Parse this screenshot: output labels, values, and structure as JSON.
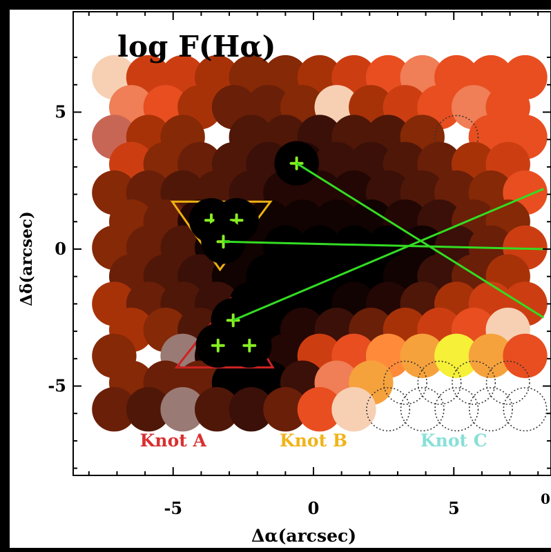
{
  "chart_data": {
    "type": "heatmap",
    "title": "log F(Hα)",
    "xlabel": "Δα(arcsec)",
    "ylabel": "Δδ(arcsec)",
    "xlim": [
      -8.2,
      8.2
    ],
    "ylim": [
      -8.2,
      7.8
    ],
    "xticks": [
      -5,
      0,
      5
    ],
    "xtick_labels": [
      "-5",
      "0",
      "5"
    ],
    "yticks": [
      -5,
      0,
      5
    ],
    "ytick_labels": [
      "-5",
      "0",
      "5"
    ],
    "edge_label": "0",
    "fiber_diameter_arcsec": 1.6,
    "colors": {
      "1": "#f7d0b4",
      "2": "#f07e56",
      "3": "#e84e20",
      "4": "#cc3e12",
      "5": "#a83208",
      "6": "#852906",
      "7": "#6a1f08",
      "8": "#4f1708",
      "9": "#3a1008",
      "10": "#230704",
      "11": "#100302",
      "12": "#000000",
      "14": "#f6a23c",
      "15": "#f6f038",
      "16": "#9a7a74",
      "17": "#c86656",
      "19": "#ff8a3a"
    },
    "rows": [
      {
        "y": 6.27,
        "x": [
          -7.1,
          -5.88,
          -4.66,
          -3.44,
          -2.22,
          -1.0,
          0.22,
          1.44,
          2.66,
          3.88,
          5.1,
          6.32,
          7.54
        ],
        "levels": [
          1,
          4,
          4,
          5,
          6,
          6,
          5,
          4,
          3,
          2,
          3,
          3,
          3
        ]
      },
      {
        "y": 5.18,
        "x": [
          -6.49,
          -5.27,
          -4.05,
          -2.83,
          -1.61,
          -0.39,
          0.83,
          2.05,
          3.27,
          4.49,
          5.71,
          6.93
        ],
        "levels": [
          2,
          3,
          5,
          7,
          7,
          6,
          1,
          5,
          4,
          3,
          2,
          3
        ]
      },
      {
        "y": 4.09,
        "x": [
          -7.1,
          -5.88,
          -4.66,
          -2.22,
          -1.0,
          0.22,
          1.44,
          2.66,
          3.88,
          6.32,
          7.54
        ],
        "levels": [
          17,
          5,
          6,
          8,
          8,
          9,
          8,
          8,
          6,
          3,
          3
        ],
        "empty": [
          5.1
        ]
      },
      {
        "y": 3.1,
        "x": [
          -6.49,
          -5.27,
          -4.05,
          -2.83,
          -1.61,
          -0.39,
          0.83,
          2.05,
          3.27,
          4.49,
          5.71,
          6.93
        ],
        "levels": [
          4,
          6,
          7,
          8,
          9,
          10,
          9,
          9,
          8,
          7,
          5,
          4
        ]
      },
      {
        "y": 2.06,
        "x": [
          -7.1,
          -5.88,
          -4.66,
          -3.44,
          -2.22,
          -1.0,
          0.22,
          1.44,
          2.66,
          3.88,
          5.1,
          6.32,
          7.54
        ],
        "levels": [
          6,
          7,
          8,
          8,
          9,
          10,
          10,
          10,
          9,
          8,
          7,
          6,
          3
        ]
      },
      {
        "y": 1.0,
        "x": [
          -6.49,
          -5.27,
          -4.05,
          -2.83,
          -1.61,
          -0.39,
          0.83,
          2.05,
          3.27,
          4.49,
          5.71,
          6.93
        ],
        "levels": [
          6,
          7,
          10,
          10,
          11,
          11,
          11,
          11,
          10,
          9,
          7,
          6
        ]
      },
      {
        "y": 0.05,
        "x": [
          -7.1,
          -5.88,
          -4.66,
          -3.44,
          -2.22,
          -1.0,
          0.22,
          1.44,
          2.66,
          3.88,
          5.1,
          6.32,
          7.54
        ],
        "levels": [
          6,
          7,
          8,
          11,
          11,
          12,
          12,
          12,
          12,
          11,
          9,
          7,
          4
        ]
      },
      {
        "y": -1.0,
        "x": [
          -6.49,
          -5.27,
          -4.05,
          -2.83,
          -1.61,
          -0.39,
          0.83,
          2.05,
          3.27,
          4.49,
          5.71,
          6.93
        ],
        "levels": [
          7,
          8,
          9,
          11,
          12,
          12,
          12,
          12,
          11,
          9,
          7,
          5
        ]
      },
      {
        "y": -2.0,
        "x": [
          -7.1,
          -5.88,
          -4.66,
          -3.44,
          -2.22,
          -1.0,
          0.22,
          1.44,
          2.66,
          3.88,
          5.1,
          6.32,
          7.54
        ],
        "levels": [
          5,
          7,
          8,
          9,
          12,
          12,
          12,
          11,
          10,
          8,
          5,
          4,
          4
        ]
      },
      {
        "y": -2.95,
        "x": [
          -6.49,
          -5.27,
          -4.05,
          -2.83,
          -1.61,
          -0.39,
          0.83,
          2.05,
          3.27,
          4.49,
          5.71,
          6.93
        ],
        "levels": [
          5,
          6,
          8,
          11,
          12,
          10,
          9,
          7,
          5,
          4,
          3,
          1
        ]
      },
      {
        "y": -3.9,
        "x": [
          -7.1,
          -4.66,
          -3.44,
          -2.22,
          -1.0,
          0.22,
          1.44,
          2.66,
          3.88,
          5.1,
          6.32,
          7.54
        ],
        "levels": [
          6,
          16,
          11,
          11,
          10,
          4,
          3,
          19,
          14,
          15,
          14,
          3
        ]
      },
      {
        "y": -4.88,
        "x": [
          -6.49,
          -5.27,
          -4.05,
          -2.83,
          -1.61,
          -0.39,
          0.83,
          2.05
        ],
        "levels": [
          6,
          7,
          7,
          12,
          12,
          9,
          2,
          14
        ],
        "empty": [
          3.27,
          4.49,
          5.71,
          6.93
        ]
      },
      {
        "y": -5.85,
        "x": [
          -7.1,
          -5.88,
          -4.66,
          -3.44,
          -2.22,
          -1.0,
          0.22,
          1.44
        ],
        "levels": [
          7,
          8,
          16,
          8,
          9,
          7,
          3,
          1
        ],
        "empty": [
          2.66,
          3.88,
          5.1,
          6.32,
          7.54
        ]
      }
    ],
    "knots": [
      {
        "name": "Knot A",
        "color": "#cc2222",
        "shape": "triangle-up",
        "vertices": [
          [
            -2.95,
            -1.8
          ],
          [
            -4.88,
            -4.32
          ],
          [
            -1.45,
            -4.32
          ]
        ],
        "fibers": [
          [
            -2.86,
            -2.6
          ],
          [
            -3.4,
            -3.52
          ],
          [
            -2.28,
            -3.52
          ]
        ]
      },
      {
        "name": "Knot B",
        "color": "#eeb210",
        "shape": "triangle-down",
        "vertices": [
          [
            -5.03,
            1.73
          ],
          [
            -1.53,
            1.73
          ],
          [
            -3.33,
            -0.75
          ]
        ],
        "fibers": [
          [
            -3.64,
            1.05
          ],
          [
            -2.74,
            1.05
          ],
          [
            -3.21,
            0.27
          ]
        ]
      },
      {
        "name": "Knot C",
        "color": "#7fd8c8",
        "shape": "circle",
        "center": [
          -0.6,
          3.13
        ],
        "radius": 0.55,
        "fibers": [
          [
            -0.6,
            3.13
          ]
        ]
      }
    ],
    "marker_color": "#88ee22",
    "leader_color": "#33dd22",
    "leaders": [
      {
        "from": [
          -3.21,
          0.27
        ],
        "to": [
          8.2,
          0.0
        ]
      },
      {
        "from": [
          -2.86,
          -2.6
        ],
        "to": [
          8.2,
          2.2
        ]
      },
      {
        "from": [
          -0.6,
          3.13
        ],
        "to": [
          8.2,
          -2.5
        ]
      }
    ],
    "legend": [
      {
        "label": "Knot A",
        "color": "#d83030"
      },
      {
        "label": "Knot B",
        "color": "#f0b418"
      },
      {
        "label": "Knot C",
        "color": "#88e0d8"
      }
    ]
  }
}
